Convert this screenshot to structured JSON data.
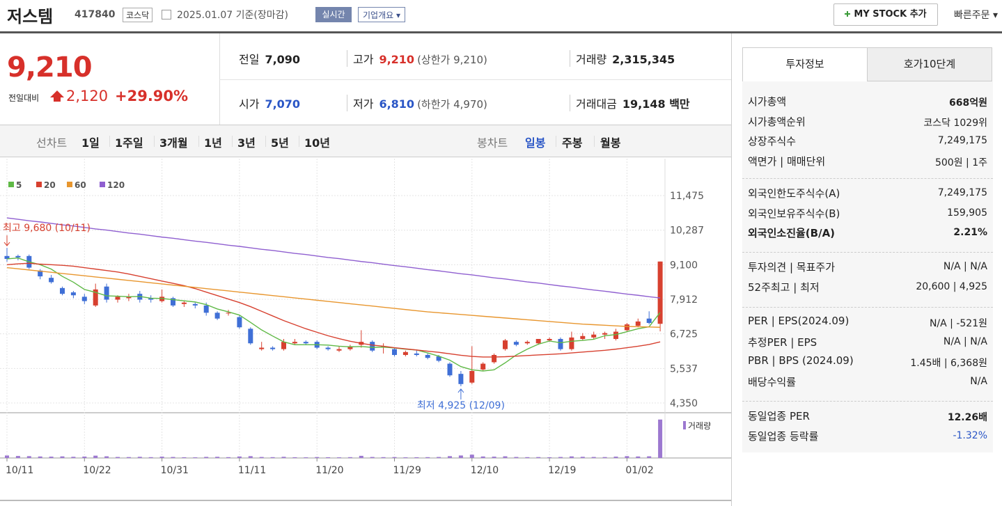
{
  "header": {
    "name": "저스템",
    "code": "417840",
    "market": "코스닥",
    "date": "2025.01.07",
    "basis": "기준(장마감)",
    "realtime": "실시간",
    "overview": "기업개요",
    "mystock": "MY STOCK 추가",
    "quick_order": "빠른주문"
  },
  "quote": {
    "price": "9,210",
    "change_label": "전일대비",
    "change": "2,120",
    "change_pct": "+29.90%",
    "fields": [
      {
        "label": "전일",
        "value": "7,090"
      },
      {
        "label": "고가",
        "value": "9,210",
        "note": "(상한가 9,210)"
      },
      {
        "label": "거래량",
        "value": "2,315,345"
      },
      {
        "label": "시가",
        "value": "7,070"
      },
      {
        "label": "저가",
        "value": "6,810",
        "note": "(하한가 4,970)"
      },
      {
        "label": "거래대금",
        "value": "19,148 백만"
      }
    ]
  },
  "tabs": {
    "line_chart": "선차트",
    "line_periods": [
      "1일",
      "1주일",
      "3개월",
      "1년",
      "3년",
      "5년",
      "10년"
    ],
    "candle_chart": "봉차트",
    "candle_periods": [
      "일봉",
      "주봉",
      "월봉"
    ]
  },
  "info": {
    "tabs": [
      "투자정보",
      "호가10단계"
    ],
    "sections": [
      [
        {
          "label": "시가총액",
          "value": "668억원"
        },
        {
          "label": "시가총액순위",
          "value": "코스닥 1029위"
        },
        {
          "label": "상장주식수",
          "value": "7,249,175"
        },
        {
          "label": "액면가 | 매매단위",
          "value": "500원 | 1주"
        }
      ],
      [
        {
          "label": "외국인한도주식수(A)",
          "value": "7,249,175"
        },
        {
          "label": "외국인보유주식수(B)",
          "value": "159,905"
        },
        {
          "label": "외국인소진율(B/A)",
          "value": "2.21%"
        }
      ],
      [
        {
          "label": "투자의견 | 목표주가",
          "value": "N/A | N/A"
        },
        {
          "label": "52주최고 | 최저",
          "value": "20,600 | 4,925"
        }
      ],
      [
        {
          "label": "PER | EPS(2024.09)",
          "value": "N/A | -521원"
        },
        {
          "label": "추정PER | EPS",
          "value": "N/A | N/A"
        },
        {
          "label": "PBR | BPS (2024.09)",
          "value": "1.45배 | 6,368원"
        },
        {
          "label": "배당수익률",
          "value": "N/A"
        }
      ],
      [
        {
          "label": "동일업종 PER",
          "value": "12.26배"
        },
        {
          "label": "동일업종 등락률",
          "value": "-1.32%"
        }
      ]
    ]
  },
  "chart_data": {
    "type": "candlestick",
    "categories": [
      "10/11",
      null,
      null,
      null,
      null,
      null,
      null,
      "10/22",
      null,
      null,
      null,
      null,
      null,
      null,
      "10/31",
      null,
      null,
      null,
      null,
      null,
      null,
      "11/11",
      null,
      null,
      null,
      null,
      null,
      null,
      "11/20",
      null,
      null,
      null,
      null,
      null,
      null,
      "11/29",
      null,
      null,
      null,
      null,
      null,
      null,
      "12/10",
      null,
      null,
      null,
      null,
      null,
      null,
      "12/19",
      null,
      null,
      null,
      null,
      null,
      null,
      "01/02",
      null,
      null,
      null
    ],
    "open": [
      9400,
      9400,
      9400,
      8900,
      8650,
      8300,
      8150,
      8000,
      7700,
      8350,
      7900,
      7950,
      8100,
      7950,
      7850,
      7950,
      7750,
      7750,
      7700,
      7450,
      7450,
      7300,
      6900,
      6200,
      6250,
      6200,
      6400,
      6450,
      6450,
      6250,
      6150,
      6200,
      6350,
      6450,
      6250,
      6200,
      6000,
      6050,
      6000,
      5950,
      5700,
      5350,
      5050,
      5500,
      5750,
      6200,
      6450,
      6400,
      6400,
      6500,
      6550,
      6200,
      6550,
      6600,
      6700,
      6550,
      6850,
      7000,
      7250,
      7070
    ],
    "high": [
      9680,
      9450,
      9450,
      8950,
      8750,
      8350,
      8200,
      8100,
      8450,
      8450,
      8050,
      8100,
      8200,
      8050,
      8250,
      8000,
      7850,
      7800,
      7800,
      7500,
      7550,
      7350,
      6950,
      6450,
      6300,
      6550,
      6550,
      6500,
      6500,
      6300,
      6300,
      6350,
      6850,
      6500,
      6400,
      6250,
      6150,
      6150,
      6050,
      6000,
      5750,
      5450,
      6300,
      5750,
      6050,
      6550,
      6500,
      6500,
      6550,
      6600,
      6600,
      6800,
      6750,
      6800,
      6800,
      6900,
      7100,
      7250,
      7500,
      9210
    ],
    "low": [
      9200,
      9250,
      8950,
      8600,
      8450,
      8050,
      7950,
      7750,
      7650,
      7800,
      7800,
      7850,
      7800,
      7800,
      7800,
      7650,
      7650,
      7600,
      7350,
      7200,
      7350,
      6900,
      6350,
      6150,
      6150,
      6150,
      6350,
      6350,
      6200,
      6150,
      6100,
      6150,
      6250,
      6100,
      6050,
      5950,
      5950,
      5950,
      5850,
      5750,
      5250,
      4925,
      5000,
      5450,
      5700,
      6150,
      6300,
      6350,
      6350,
      6450,
      6150,
      6150,
      6500,
      6550,
      6550,
      6500,
      6800,
      6950,
      7050,
      6810
    ],
    "close": [
      9300,
      9350,
      9000,
      8700,
      8500,
      8100,
      8050,
      7850,
      8250,
      7900,
      8000,
      8000,
      7900,
      7900,
      8000,
      7700,
      7800,
      7700,
      7450,
      7250,
      7450,
      6950,
      6400,
      6250,
      6200,
      6450,
      6450,
      6400,
      6250,
      6200,
      6200,
      6300,
      6450,
      6150,
      6300,
      6000,
      6100,
      6000,
      5900,
      5800,
      5300,
      5000,
      5450,
      5700,
      6000,
      6500,
      6350,
      6450,
      6550,
      6550,
      6200,
      6600,
      6650,
      6700,
      6750,
      6800,
      7050,
      7150,
      7100,
      9210
    ],
    "up_color": "#d7402f",
    "down_color": "#3f6fd6",
    "ma": [
      {
        "name": "5",
        "color": "#5fb946",
        "values": [
          9300,
          9330,
          9200,
          9100,
          8950,
          8700,
          8500,
          8250,
          8150,
          8030,
          8020,
          8000,
          8010,
          7950,
          7940,
          7900,
          7860,
          7820,
          7730,
          7580,
          7480,
          7370,
          7120,
          6860,
          6650,
          6450,
          6350,
          6350,
          6350,
          6340,
          6300,
          6280,
          6290,
          6260,
          6270,
          6240,
          6200,
          6170,
          6070,
          5960,
          5820,
          5600,
          5490,
          5450,
          5490,
          5730,
          6000,
          6200,
          6370,
          6480,
          6420,
          6470,
          6500,
          6540,
          6660,
          6700,
          6800,
          6900,
          6970,
          7460
        ]
      },
      {
        "name": "20",
        "color": "#d7402f",
        "values": [
          9100,
          9130,
          9150,
          9120,
          9100,
          9080,
          9050,
          9000,
          8950,
          8900,
          8850,
          8780,
          8700,
          8620,
          8540,
          8460,
          8380,
          8280,
          8160,
          8040,
          7920,
          7800,
          7660,
          7500,
          7340,
          7180,
          7040,
          6900,
          6780,
          6660,
          6560,
          6470,
          6400,
          6340,
          6300,
          6250,
          6210,
          6170,
          6130,
          6090,
          6040,
          5990,
          5950,
          5930,
          5930,
          5940,
          5960,
          5980,
          6000,
          6020,
          6040,
          6070,
          6100,
          6130,
          6160,
          6200,
          6250,
          6300,
          6360,
          6450
        ]
      },
      {
        "name": "60",
        "color": "#e8962e",
        "values": [
          9000,
          8960,
          8920,
          8880,
          8840,
          8800,
          8760,
          8720,
          8680,
          8640,
          8600,
          8560,
          8520,
          8480,
          8440,
          8400,
          8360,
          8320,
          8280,
          8240,
          8200,
          8160,
          8120,
          8080,
          8040,
          8000,
          7960,
          7920,
          7880,
          7840,
          7800,
          7760,
          7720,
          7680,
          7640,
          7600,
          7560,
          7520,
          7480,
          7450,
          7420,
          7390,
          7360,
          7330,
          7300,
          7270,
          7240,
          7210,
          7180,
          7150,
          7120,
          7090,
          7060,
          7040,
          7020,
          7000,
          6980,
          6970,
          6960,
          6950
        ]
      },
      {
        "name": "120",
        "color": "#8f5fd0",
        "values": [
          10710,
          10660,
          10610,
          10570,
          10520,
          10470,
          10430,
          10380,
          10330,
          10290,
          10240,
          10190,
          10150,
          10100,
          10050,
          10010,
          9960,
          9910,
          9870,
          9820,
          9770,
          9730,
          9680,
          9630,
          9590,
          9540,
          9490,
          9450,
          9400,
          9350,
          9310,
          9260,
          9210,
          9170,
          9120,
          9070,
          9030,
          8980,
          8930,
          8890,
          8840,
          8790,
          8750,
          8700,
          8650,
          8610,
          8560,
          8510,
          8470,
          8420,
          8370,
          8330,
          8280,
          8230,
          8190,
          8140,
          8090,
          8050,
          8000,
          7960
        ]
      }
    ],
    "ylim": [
      4015,
      12456
    ],
    "yticks": [
      {
        "value": 4350,
        "label": "4,350"
      },
      {
        "value": 5537,
        "label": "5,537"
      },
      {
        "value": 6725,
        "label": "6,725"
      },
      {
        "value": 7912,
        "label": "7,912"
      },
      {
        "value": 9100,
        "label": "9,100"
      },
      {
        "value": 10287,
        "label": "10,287"
      },
      {
        "value": 11475,
        "label": "11,475"
      }
    ],
    "grid": true,
    "annotations": [
      {
        "text": "최고 9,680 (10/11)"
      },
      {
        "text": "최저 4,925 (12/09)"
      }
    ],
    "volume": {
      "name": "거래량",
      "color": "#9c78d0",
      "ylim": [
        0,
        2600000
      ],
      "values": [
        150000,
        120000,
        110000,
        90000,
        80000,
        95000,
        70000,
        85000,
        140000,
        100000,
        60000,
        55000,
        70000,
        50000,
        80000,
        60000,
        45000,
        40000,
        65000,
        70000,
        50000,
        90000,
        110000,
        60000,
        50000,
        70000,
        45000,
        40000,
        55000,
        45000,
        40000,
        50000,
        130000,
        60000,
        50000,
        55000,
        40000,
        45000,
        50000,
        60000,
        110000,
        150000,
        200000,
        90000,
        80000,
        100000,
        60000,
        50000,
        55000,
        45000,
        60000,
        95000,
        70000,
        60000,
        55000,
        80000,
        110000,
        90000,
        100000,
        2315345
      ]
    }
  }
}
